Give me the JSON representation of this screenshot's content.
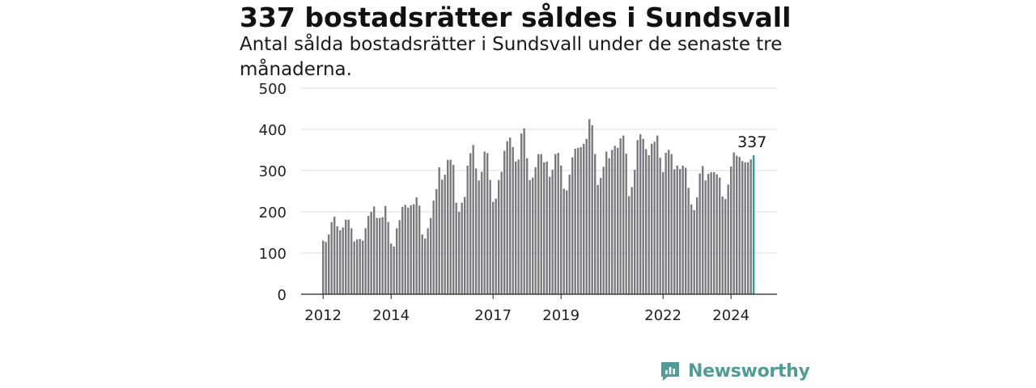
{
  "header": {
    "title": "337 bostadsrätter såldes i Sundsvall",
    "subtitle": "Antal sålda bostadsrätter i Sundsvall under de senaste tre månaderna."
  },
  "brand": {
    "name": "Newsworthy",
    "color": "#4f9d96"
  },
  "colors": {
    "bar": "#7a7a80",
    "highlight": "#2aa19a",
    "grid": "#dddddd"
  },
  "chart_data": {
    "type": "bar",
    "title": "337 bostadsrätter såldes i Sundsvall",
    "subtitle": "Antal sålda bostadsrätter i Sundsvall under de senaste tre månaderna.",
    "xlabel": "",
    "ylabel": "",
    "ylim": [
      0,
      500
    ],
    "yticks": [
      0,
      100,
      200,
      300,
      400,
      500
    ],
    "xticks": [
      "2012",
      "2014",
      "2017",
      "2019",
      "2022",
      "2024"
    ],
    "x_start": "2012-01",
    "x_end": "2024-12",
    "grid": true,
    "highlight_label": "337",
    "values": [
      130,
      127,
      145,
      175,
      188,
      165,
      155,
      162,
      181,
      181,
      160,
      128,
      133,
      134,
      130,
      160,
      190,
      200,
      213,
      185,
      185,
      187,
      214,
      175,
      123,
      116,
      160,
      180,
      212,
      217,
      210,
      216,
      218,
      235,
      215,
      145,
      135,
      160,
      185,
      227,
      255,
      308,
      278,
      290,
      326,
      326,
      314,
      222,
      200,
      222,
      236,
      312,
      342,
      362,
      305,
      276,
      297,
      346,
      342,
      277,
      224,
      232,
      277,
      297,
      348,
      371,
      380,
      357,
      322,
      327,
      390,
      402,
      330,
      277,
      283,
      308,
      340,
      340,
      320,
      322,
      285,
      302,
      340,
      343,
      312,
      256,
      252,
      290,
      332,
      353,
      355,
      357,
      365,
      377,
      425,
      410,
      340,
      265,
      282,
      309,
      346,
      330,
      350,
      360,
      355,
      378,
      385,
      341,
      238,
      260,
      302,
      374,
      388,
      377,
      352,
      337,
      365,
      370,
      385,
      331,
      296,
      343,
      350,
      340,
      303,
      312,
      304,
      312,
      307,
      258,
      218,
      204,
      235,
      293,
      311,
      276,
      292,
      296,
      296,
      291,
      283,
      237,
      231,
      266,
      310,
      344,
      336,
      333,
      323,
      320,
      320,
      327,
      337
    ]
  }
}
